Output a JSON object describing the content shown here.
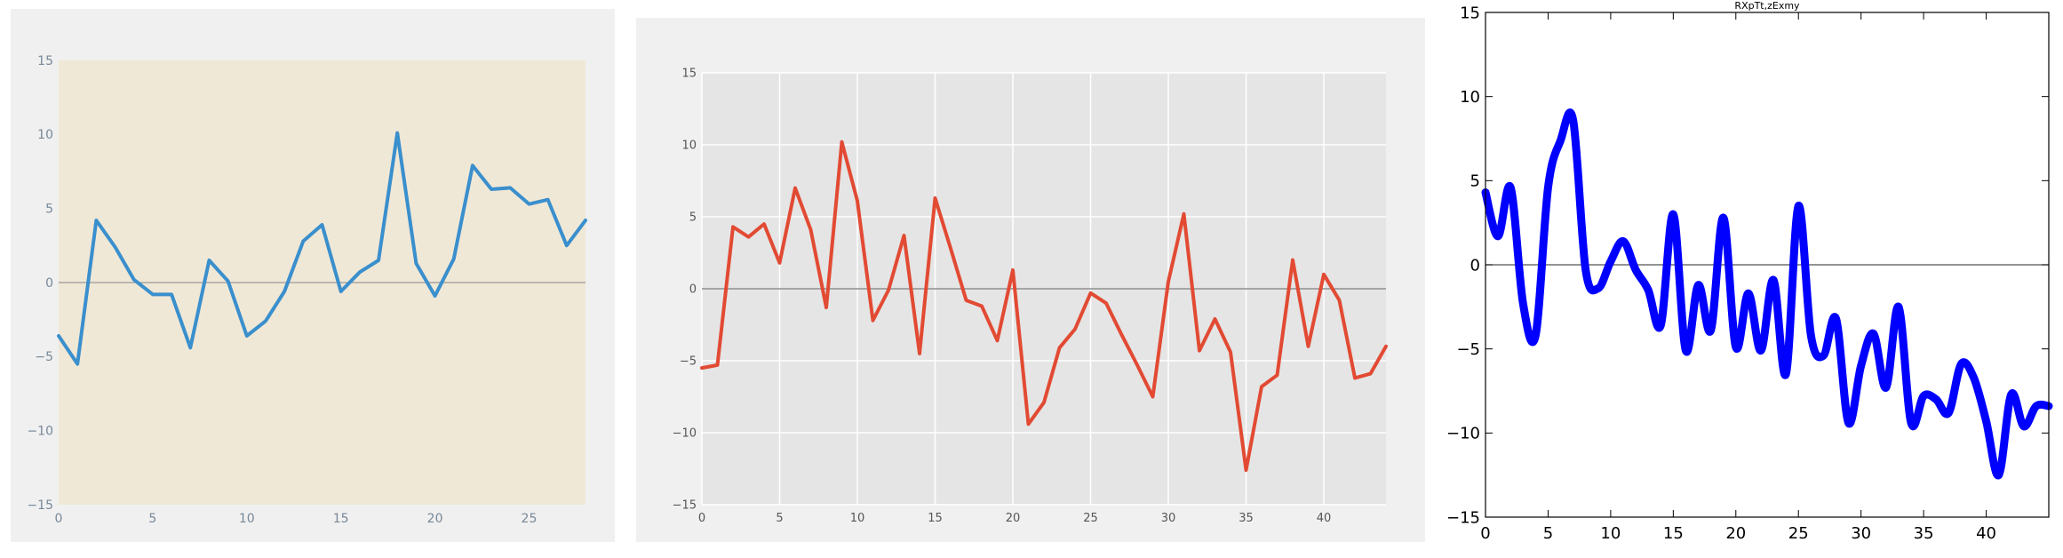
{
  "chart_data": [
    {
      "type": "line",
      "style": "fivethirtyeight-like, tan plot background, light gray figure background",
      "title": "",
      "xlim": [
        0,
        28
      ],
      "ylim": [
        -15,
        15
      ],
      "x_ticks": [
        0,
        5,
        10,
        15,
        20,
        25
      ],
      "y_ticks": [
        -15,
        -10,
        -5,
        0,
        5,
        10,
        15
      ],
      "x_tick_labels": [
        "0",
        "5",
        "10",
        "15",
        "20",
        "25"
      ],
      "y_tick_labels": [
        "−15",
        "−10",
        "−5",
        "0",
        "5",
        "10",
        "15"
      ],
      "grid": false,
      "zero_line": true,
      "colors": {
        "line": "#3a8fcd",
        "plot_bg": "#f0e8d6",
        "figure_bg": "#f0f0f0",
        "tick_text": "#778899",
        "zero_line": "#999999"
      },
      "series": [
        {
          "x": [
            0,
            1,
            2,
            3,
            4,
            5,
            6,
            7,
            8,
            9,
            10,
            11,
            12,
            13,
            14,
            15,
            16,
            17,
            18,
            19,
            20,
            21,
            22,
            23,
            24,
            25,
            26,
            27,
            28
          ],
          "values": [
            -3.6,
            -5.5,
            4.2,
            2.4,
            0.2,
            -0.8,
            -0.8,
            -4.4,
            1.5,
            0.1,
            -3.6,
            -2.6,
            -0.6,
            2.8,
            3.9,
            -0.6,
            0.7,
            1.5,
            10.1,
            1.3,
            -0.9,
            1.6,
            7.9,
            6.3,
            6.4,
            5.3,
            5.6,
            2.5,
            4.2
          ]
        }
      ]
    },
    {
      "type": "line",
      "style": "ggplot-like, gray plot background with white grid",
      "title": "",
      "xlim": [
        0,
        44
      ],
      "ylim": [
        -15,
        15
      ],
      "x_ticks": [
        0,
        5,
        10,
        15,
        20,
        25,
        30,
        35,
        40
      ],
      "y_ticks": [
        -15,
        -10,
        -5,
        0,
        5,
        10,
        15
      ],
      "x_tick_labels": [
        "0",
        "5",
        "10",
        "15",
        "20",
        "25",
        "30",
        "35",
        "40"
      ],
      "y_tick_labels": [
        "−15",
        "−10",
        "−5",
        "0",
        "5",
        "10",
        "15"
      ],
      "grid": true,
      "zero_line": true,
      "colors": {
        "line": "#e24a33",
        "plot_bg": "#e5e5e5",
        "figure_bg": "#f0f0f0",
        "tick_text": "#555555",
        "grid": "#ffffff",
        "zero_line": "#777777"
      },
      "series": [
        {
          "x": [
            0,
            1,
            2,
            3,
            4,
            5,
            6,
            7,
            8,
            9,
            10,
            11,
            12,
            13,
            14,
            15,
            16,
            17,
            18,
            19,
            20,
            21,
            22,
            23,
            24,
            25,
            26,
            27,
            28,
            29,
            30,
            31,
            32,
            33,
            34,
            35,
            36,
            37,
            38,
            39,
            40,
            41,
            42,
            43,
            44
          ],
          "values": [
            -5.5,
            -5.3,
            4.3,
            3.6,
            4.5,
            1.8,
            7.0,
            4.1,
            -1.3,
            10.2,
            6.1,
            -2.2,
            -0.1,
            3.7,
            -4.5,
            6.3,
            2.8,
            -0.8,
            -1.2,
            -3.6,
            1.3,
            -9.4,
            -7.9,
            -4.1,
            -2.8,
            -0.3,
            -1.0,
            -3.2,
            -5.3,
            -7.5,
            0.5,
            5.2,
            -4.3,
            -2.1,
            -4.4,
            -12.6,
            -6.8,
            -6.0,
            2.0,
            -4.0,
            1.0,
            -0.8,
            -6.2,
            -5.9,
            -4.0
          ]
        }
      ]
    },
    {
      "type": "line",
      "style": "classic matplotlib, white background, black frame",
      "title": "RXpTt,zExmy",
      "xlim": [
        0,
        45
      ],
      "ylim": [
        -15,
        15
      ],
      "x_ticks": [
        0,
        5,
        10,
        15,
        20,
        25,
        30,
        35,
        40
      ],
      "y_ticks": [
        -15,
        -10,
        -5,
        0,
        5,
        10,
        15
      ],
      "x_tick_labels": [
        "0",
        "5",
        "10",
        "15",
        "20",
        "25",
        "30",
        "35",
        "40"
      ],
      "y_tick_labels": [
        "−15",
        "−10",
        "−5",
        "0",
        "5",
        "10",
        "15"
      ],
      "grid": false,
      "zero_line": true,
      "smooth": true,
      "colors": {
        "line": "#0000ff",
        "plot_bg": "#ffffff",
        "tick_text": "#000000",
        "zero_line": "#555555"
      },
      "series": [
        {
          "x": [
            0,
            1,
            2,
            3,
            4,
            5,
            6,
            7,
            8,
            9,
            10,
            11,
            12,
            13,
            14,
            15,
            16,
            17,
            18,
            19,
            20,
            21,
            22,
            23,
            24,
            25,
            26,
            27,
            28,
            29,
            30,
            31,
            32,
            33,
            34,
            35,
            36,
            37,
            38,
            39,
            40,
            41,
            42,
            43,
            44,
            45
          ],
          "values": [
            4.3,
            1.7,
            4.6,
            -2.3,
            -4.2,
            4.6,
            7.4,
            8.6,
            -0.3,
            -1.4,
            0.2,
            1.4,
            -0.3,
            -1.5,
            -3.6,
            3.0,
            -5.1,
            -1.2,
            -3.9,
            2.8,
            -4.9,
            -1.7,
            -5.1,
            -0.9,
            -6.5,
            3.5,
            -4.2,
            -5.4,
            -3.2,
            -9.4,
            -6.0,
            -4.1,
            -7.3,
            -2.5,
            -9.4,
            -7.8,
            -8.0,
            -8.8,
            -5.9,
            -6.7,
            -9.3,
            -12.5,
            -7.7,
            -9.6,
            -8.4,
            -8.4
          ]
        }
      ]
    }
  ]
}
